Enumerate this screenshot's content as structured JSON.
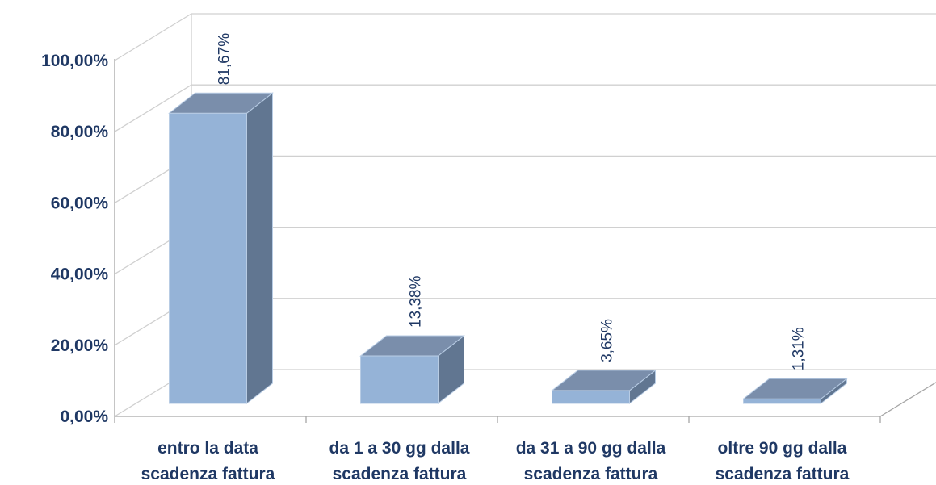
{
  "chart_data": {
    "type": "bar",
    "categories": [
      [
        "entro la data",
        "scadenza fattura"
      ],
      [
        "da 1 a 30 gg dalla",
        "scadenza fattura"
      ],
      [
        "da 31 a 90 gg dalla",
        "scadenza fattura"
      ],
      [
        "oltre 90 gg dalla",
        "scadenza fattura"
      ]
    ],
    "values": [
      81.67,
      13.38,
      3.65,
      1.31
    ],
    "data_labels": [
      "81,67%",
      "13,38%",
      "3,65%",
      "1,31%"
    ],
    "y_ticks": [
      {
        "value": 0,
        "label": "0,00%"
      },
      {
        "value": 20,
        "label": "20,00%"
      },
      {
        "value": 40,
        "label": "40,00%"
      },
      {
        "value": 60,
        "label": "60,00%"
      },
      {
        "value": 80,
        "label": "80,00%"
      },
      {
        "value": 100,
        "label": "100,00%"
      }
    ],
    "ylim": [
      0,
      100
    ],
    "three_d": true,
    "grid": true,
    "legend": "none",
    "title": "",
    "xlabel": "",
    "ylabel": "",
    "colors": {
      "bar_front": "#95b3d7",
      "bar_top": "#7a8eab",
      "bar_side": "#617691",
      "text": "#1f3864",
      "grid": "#d0d0d0"
    }
  }
}
